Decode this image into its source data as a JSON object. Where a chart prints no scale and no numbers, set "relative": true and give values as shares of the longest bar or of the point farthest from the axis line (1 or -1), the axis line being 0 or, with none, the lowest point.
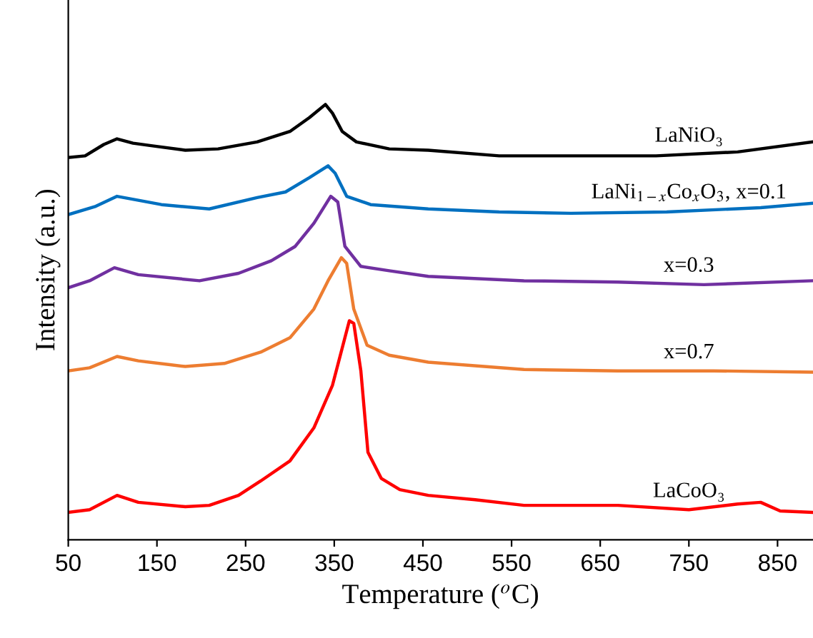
{
  "chart_data": {
    "type": "line",
    "relative": true,
    "xlabel": "Temperature ($^{o}$C)",
    "ylabel": "Intensity (a.u.)",
    "xlim": [
      50,
      890
    ],
    "xticks": [
      50,
      150,
      250,
      350,
      450,
      550,
      650,
      750,
      850
    ],
    "grid": false,
    "legend": false,
    "marker": "none",
    "line_style": "solid",
    "tick_labels": "x",
    "series": [
      {
        "name": "LaNiO₃",
        "color": "#000000",
        "x": [
          50,
          69,
          90,
          105,
          123,
          145,
          182,
          219,
          263,
          300,
          322,
          340,
          348,
          359,
          375,
          412,
          456,
          536,
          617,
          713,
          805,
          889
        ],
        "values": [
          0.878,
          0.882,
          0.908,
          0.921,
          0.911,
          0.905,
          0.895,
          0.898,
          0.914,
          0.938,
          0.97,
          1.0,
          0.98,
          0.938,
          0.914,
          0.898,
          0.895,
          0.882,
          0.882,
          0.882,
          0.891,
          0.914
        ]
      },
      {
        "name": "LaNi$_{1−x}$Co$_{x}$O$_{3}$, x=0.1",
        "color": "#0070c0",
        "x": [
          50,
          81,
          105,
          129,
          155,
          209,
          263,
          295,
          322,
          343,
          351,
          364,
          391,
          456,
          536,
          617,
          725,
          831,
          889
        ],
        "values": [
          0.747,
          0.766,
          0.789,
          0.78,
          0.77,
          0.76,
          0.786,
          0.799,
          0.832,
          0.859,
          0.842,
          0.789,
          0.77,
          0.76,
          0.753,
          0.75,
          0.753,
          0.763,
          0.773
        ]
      },
      {
        "name": "x=0.3",
        "color": "#7030a0",
        "x": [
          50,
          74,
          102,
          129,
          198,
          242,
          279,
          306,
          327,
          346,
          354,
          362,
          380,
          412,
          456,
          564,
          670,
          767,
          889
        ],
        "values": [
          0.579,
          0.595,
          0.625,
          0.609,
          0.595,
          0.612,
          0.641,
          0.674,
          0.727,
          0.789,
          0.776,
          0.674,
          0.628,
          0.618,
          0.605,
          0.595,
          0.592,
          0.586,
          0.595
        ]
      },
      {
        "name": "x=0.7",
        "color": "#ed7d31",
        "x": [
          50,
          74,
          105,
          129,
          182,
          226,
          267,
          300,
          327,
          343,
          358,
          364,
          372,
          387,
          412,
          456,
          564,
          670,
          778,
          889
        ],
        "values": [
          0.388,
          0.395,
          0.421,
          0.411,
          0.398,
          0.405,
          0.431,
          0.464,
          0.53,
          0.595,
          0.648,
          0.635,
          0.53,
          0.447,
          0.424,
          0.408,
          0.391,
          0.388,
          0.388,
          0.385
        ]
      },
      {
        "name": "LaCoO₃",
        "color": "#ff0000",
        "x": [
          50,
          74,
          105,
          129,
          182,
          209,
          242,
          267,
          300,
          327,
          348,
          367,
          372,
          380,
          388,
          403,
          424,
          456,
          509,
          564,
          670,
          750,
          805,
          831,
          853,
          889
        ],
        "values": [
          0.063,
          0.069,
          0.102,
          0.086,
          0.076,
          0.079,
          0.102,
          0.135,
          0.181,
          0.257,
          0.355,
          0.503,
          0.497,
          0.388,
          0.201,
          0.141,
          0.115,
          0.102,
          0.092,
          0.079,
          0.079,
          0.069,
          0.082,
          0.086,
          0.066,
          0.063
        ]
      }
    ]
  }
}
